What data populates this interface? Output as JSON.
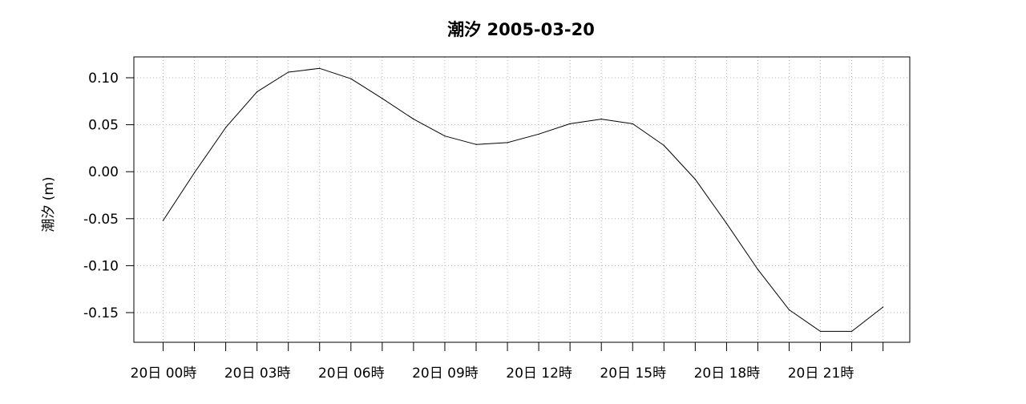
{
  "chart_data": {
    "type": "line",
    "title": "潮汐 2005-03-20",
    "xlabel": "",
    "ylabel": "潮汐 (m)",
    "ylim": [
      -0.18,
      0.12
    ],
    "y_ticks": [
      0.1,
      0.05,
      0.0,
      -0.05,
      -0.1,
      -0.15
    ],
    "y_tick_labels": [
      "0.10",
      "0.05",
      "0.00",
      "-0.05",
      "-0.10",
      "-0.15"
    ],
    "x_hours": [
      0,
      1,
      2,
      3,
      4,
      5,
      6,
      7,
      8,
      9,
      10,
      11,
      12,
      13,
      14,
      15,
      16,
      17,
      18,
      19,
      20,
      21,
      22,
      23
    ],
    "x_tick_labels": [
      {
        "hour": 0,
        "label": "20日 00時"
      },
      {
        "hour": 3,
        "label": "20日 03時"
      },
      {
        "hour": 6,
        "label": "20日 06時"
      },
      {
        "hour": 9,
        "label": "20日 09時"
      },
      {
        "hour": 12,
        "label": "20日 12時"
      },
      {
        "hour": 15,
        "label": "20日 15時"
      },
      {
        "hour": 18,
        "label": "20日 18時"
      },
      {
        "hour": 21,
        "label": "20日 21時"
      }
    ],
    "series": [
      {
        "x": [
          0,
          1,
          2,
          3,
          4,
          5,
          6,
          7,
          8,
          9,
          10,
          11,
          12,
          13,
          14,
          15,
          16,
          17,
          18,
          19,
          20,
          21,
          22
        ],
        "values": [
          -0.052,
          -0.001,
          0.047,
          0.085,
          0.106,
          0.11,
          0.099,
          0.078,
          0.056,
          0.038,
          0.029,
          0.031,
          0.04,
          0.051,
          0.056,
          0.051,
          0.028,
          -0.008,
          -0.055,
          -0.104,
          -0.147,
          -0.17,
          -0.17
        ]
      },
      {
        "x": [
          22,
          23
        ],
        "values": [
          -0.17,
          -0.144
        ]
      }
    ],
    "grid": true,
    "grid_style": "dotted",
    "colors": {
      "line": "#000000",
      "grid": "#b4b4b4",
      "frame": "#000000"
    }
  }
}
